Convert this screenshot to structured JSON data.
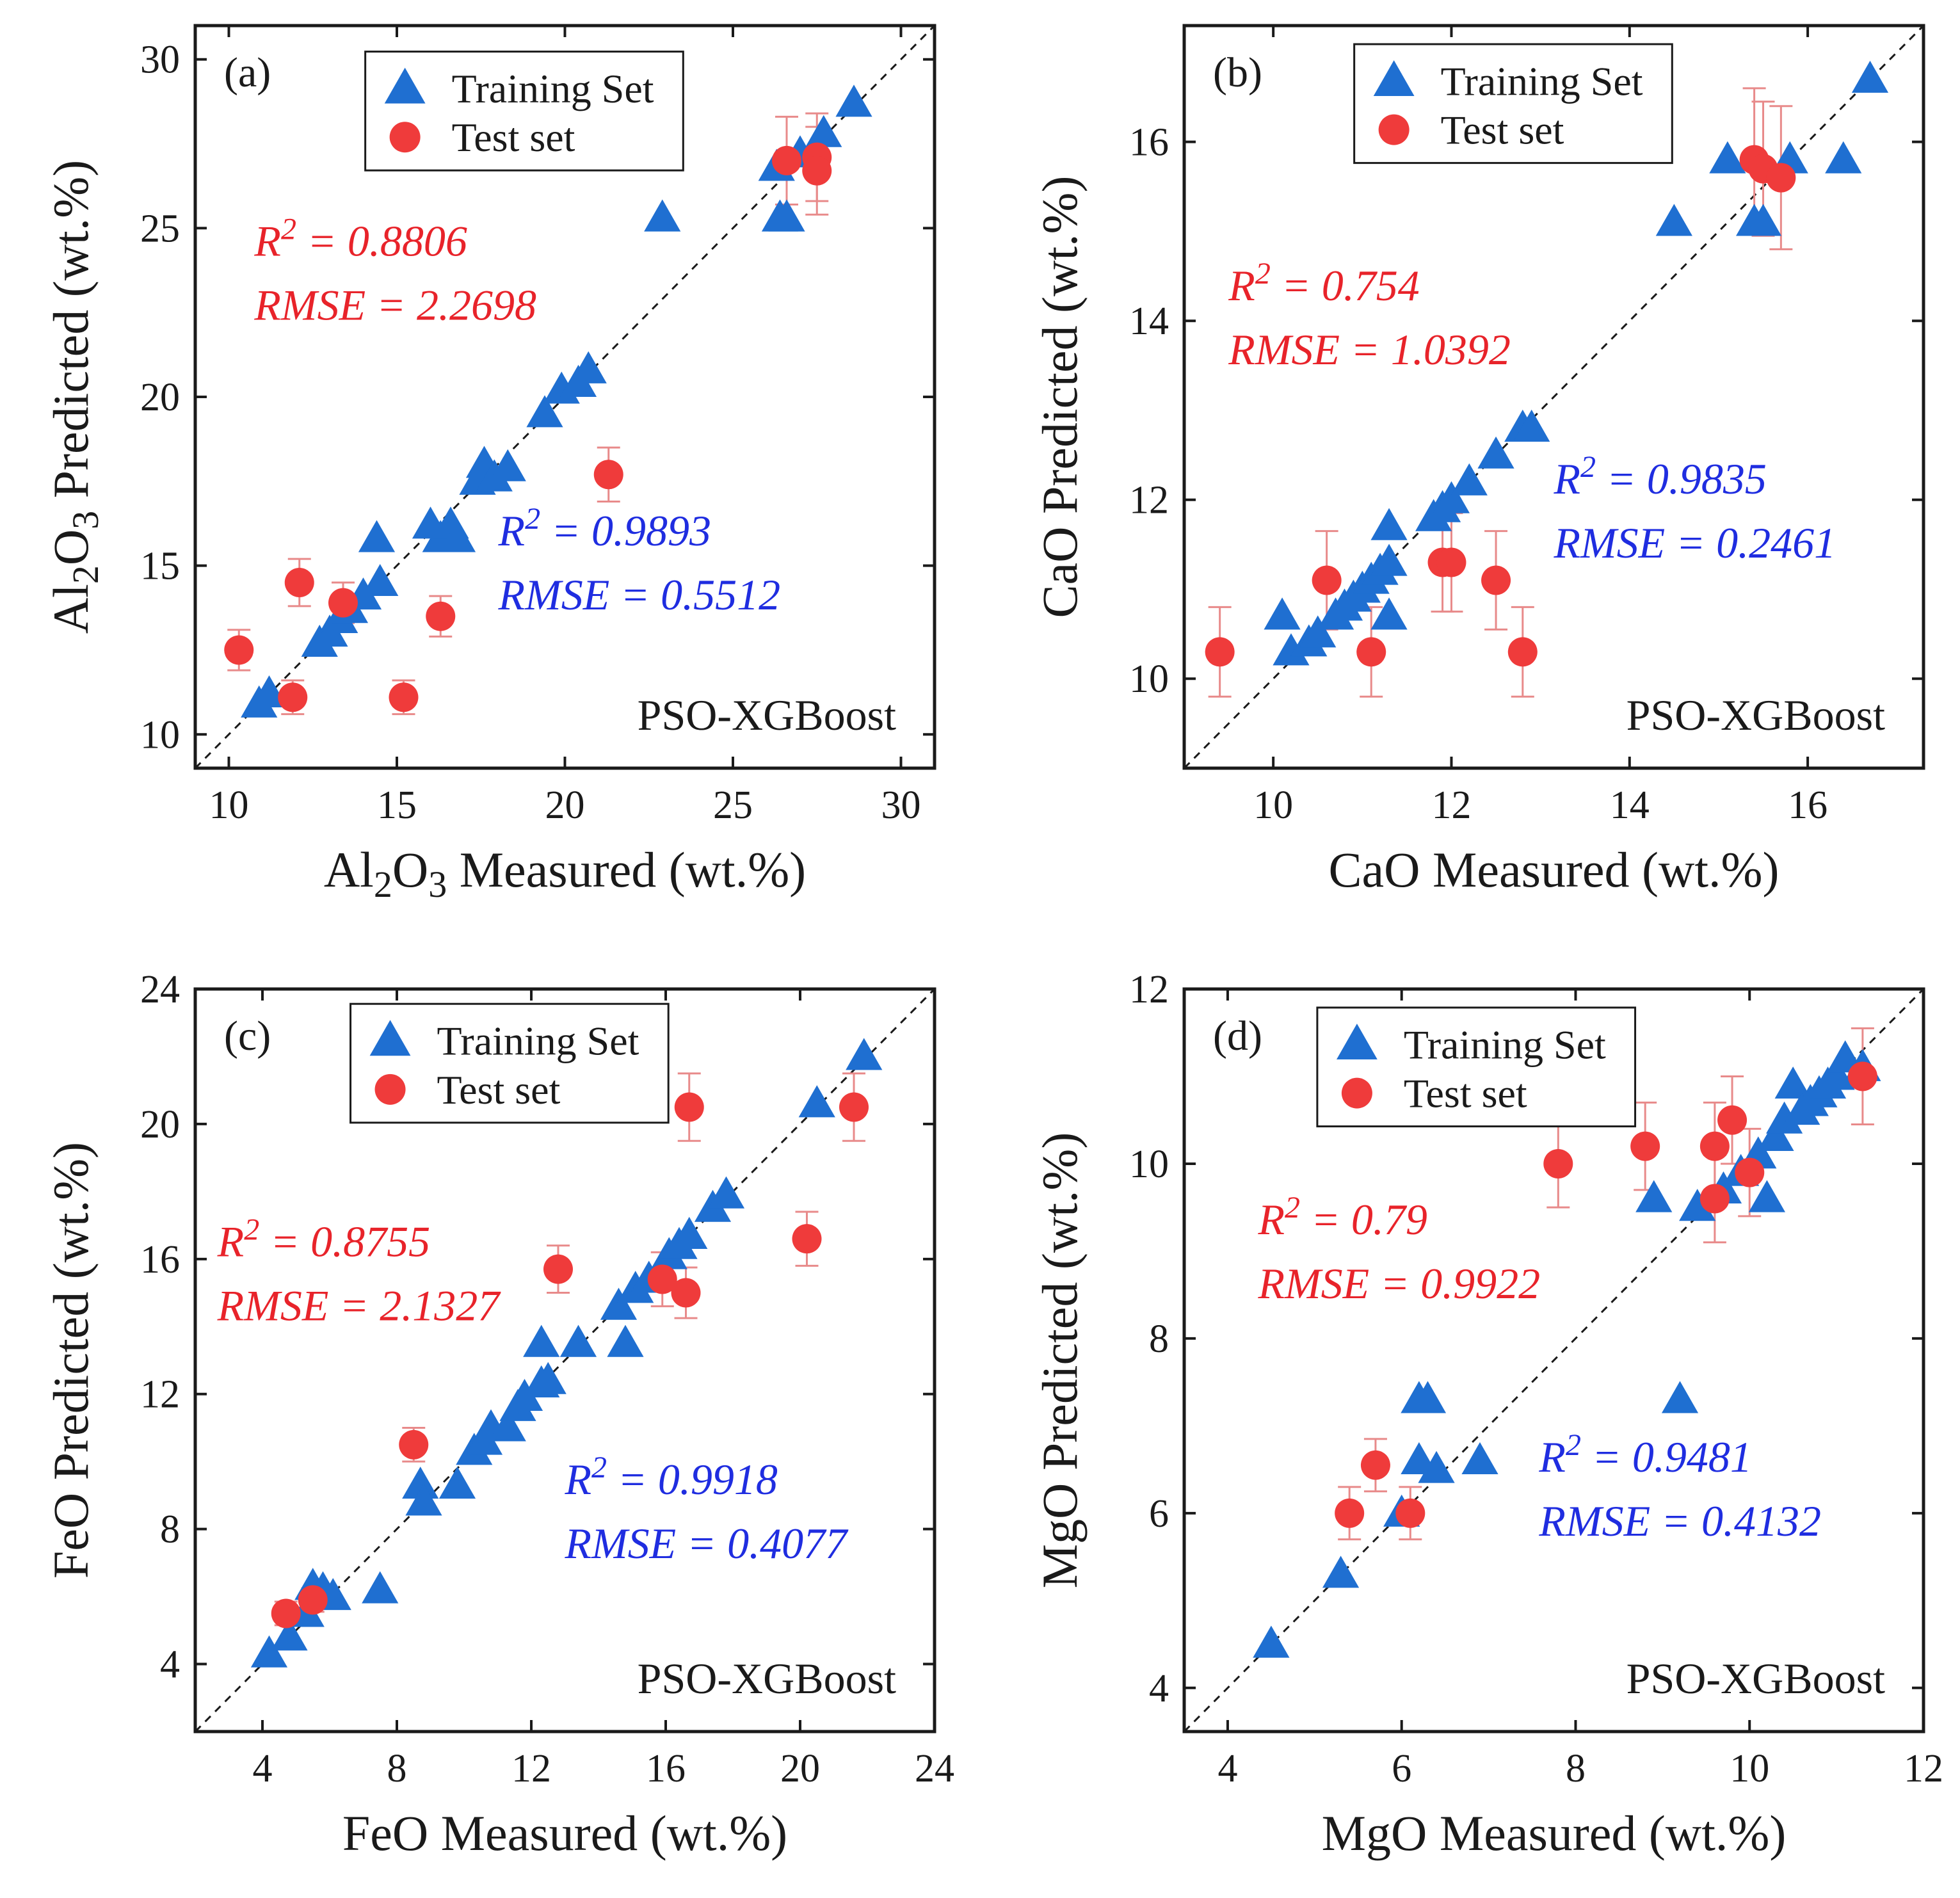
{
  "chart_data": [
    {
      "type": "scatter",
      "panel": "(a)",
      "model": "PSO-XGBoost",
      "xlabel": "Al2O3 Measured (wt.%)",
      "ylabel": "Al2O3 Predicted (wt.%)",
      "xlabel_parts": [
        {
          "t": "Al"
        },
        {
          "t": "2",
          "sub": true
        },
        {
          "t": "O"
        },
        {
          "t": "3",
          "sub": true
        },
        {
          "t": " Measured (wt.%)"
        }
      ],
      "ylabel_parts": [
        {
          "t": "Al"
        },
        {
          "t": "2",
          "sub": true
        },
        {
          "t": "O"
        },
        {
          "t": "3",
          "sub": true
        },
        {
          "t": " Predicted (wt.%)"
        }
      ],
      "xlim": [
        9,
        31
      ],
      "ylim": [
        9,
        31
      ],
      "xticks": [
        10,
        15,
        20,
        25,
        30
      ],
      "yticks": [
        10,
        15,
        20,
        25,
        30
      ],
      "legend": [
        "Training Set",
        "Test set"
      ],
      "train_stats": {
        "r2_prefix": "R",
        "r2_sup": "2",
        "r2_value": " = 0.9893",
        "rmse": "RMSE = 0.5512"
      },
      "test_stats": {
        "r2_prefix": "R",
        "r2_sup": "2",
        "r2_value": " = 0.8806",
        "rmse": "RMSE = 2.2698"
      },
      "training": [
        [
          10.9,
          10.9
        ],
        [
          11.2,
          11.2
        ],
        [
          12.7,
          12.7
        ],
        [
          13.0,
          13.0
        ],
        [
          13.3,
          13.4
        ],
        [
          13.6,
          13.7
        ],
        [
          14.0,
          14.1
        ],
        [
          14.5,
          14.5
        ],
        [
          14.4,
          15.8
        ],
        [
          16.0,
          16.2
        ],
        [
          16.3,
          15.8
        ],
        [
          16.6,
          16.2
        ],
        [
          16.8,
          15.8
        ],
        [
          17.4,
          17.5
        ],
        [
          17.6,
          18.0
        ],
        [
          17.9,
          17.6
        ],
        [
          18.3,
          17.9
        ],
        [
          19.4,
          19.5
        ],
        [
          19.9,
          20.2
        ],
        [
          20.4,
          20.4
        ],
        [
          20.7,
          20.8
        ],
        [
          22.9,
          25.3
        ],
        [
          26.3,
          26.8
        ],
        [
          26.4,
          25.3
        ],
        [
          26.6,
          25.3
        ],
        [
          27.0,
          27.2
        ],
        [
          27.7,
          27.8
        ],
        [
          28.6,
          28.7
        ]
      ],
      "test": [
        {
          "x": 10.3,
          "y": 12.5,
          "err": 0.6
        },
        {
          "x": 11.9,
          "y": 11.1,
          "err": 0.5
        },
        {
          "x": 12.1,
          "y": 14.5,
          "err": 0.7
        },
        {
          "x": 13.4,
          "y": 13.9,
          "err": 0.6
        },
        {
          "x": 15.2,
          "y": 11.1,
          "err": 0.5
        },
        {
          "x": 16.3,
          "y": 13.5,
          "err": 0.6
        },
        {
          "x": 21.3,
          "y": 17.7,
          "err": 0.8
        },
        {
          "x": 26.6,
          "y": 27.0,
          "err": 1.3
        },
        {
          "x": 27.5,
          "y": 27.1,
          "err": 1.3
        },
        {
          "x": 27.5,
          "y": 26.7,
          "err": 1.3
        }
      ]
    },
    {
      "type": "scatter",
      "panel": "(b)",
      "model": "PSO-XGBoost",
      "xlabel": "CaO Measured (wt.%)",
      "ylabel": "CaO Predicted (wt.%)",
      "xlabel_parts": [
        {
          "t": "CaO Measured (wt.%)"
        }
      ],
      "ylabel_parts": [
        {
          "t": "CaO Predicted (wt.%)"
        }
      ],
      "xlim": [
        9,
        17.3
      ],
      "ylim": [
        9,
        17.3
      ],
      "xticks": [
        10,
        12,
        14,
        16
      ],
      "yticks": [
        10,
        12,
        14,
        16
      ],
      "legend": [
        "Training Set",
        "Test set"
      ],
      "train_stats": {
        "r2_prefix": "R",
        "r2_sup": "2",
        "r2_value": " = 0.9835",
        "rmse": "RMSE = 0.2461"
      },
      "test_stats": {
        "r2_prefix": "R",
        "r2_sup": "2",
        "r2_value": " = 0.754",
        "rmse": "RMSE = 1.0392"
      },
      "training": [
        [
          10.1,
          10.7
        ],
        [
          10.2,
          10.3
        ],
        [
          10.4,
          10.4
        ],
        [
          10.5,
          10.5
        ],
        [
          10.7,
          10.7
        ],
        [
          10.8,
          10.8
        ],
        [
          10.9,
          10.9
        ],
        [
          11.0,
          11.0
        ],
        [
          11.1,
          11.1
        ],
        [
          11.2,
          11.2
        ],
        [
          11.3,
          11.3
        ],
        [
          11.3,
          11.7
        ],
        [
          11.3,
          10.7
        ],
        [
          11.8,
          11.8
        ],
        [
          11.9,
          11.9
        ],
        [
          12.0,
          12.0
        ],
        [
          12.2,
          12.2
        ],
        [
          12.5,
          12.5
        ],
        [
          12.8,
          12.8
        ],
        [
          12.9,
          12.8
        ],
        [
          14.5,
          15.1
        ],
        [
          15.1,
          15.8
        ],
        [
          15.4,
          15.1
        ],
        [
          15.5,
          15.1
        ],
        [
          15.8,
          15.8
        ],
        [
          16.4,
          15.8
        ],
        [
          16.7,
          16.7
        ]
      ],
      "test": [
        {
          "x": 9.4,
          "y": 10.3,
          "err": 0.5
        },
        {
          "x": 10.6,
          "y": 11.1,
          "err": 0.55
        },
        {
          "x": 11.1,
          "y": 10.3,
          "err": 0.5
        },
        {
          "x": 11.9,
          "y": 11.3,
          "err": 0.55
        },
        {
          "x": 12.0,
          "y": 11.3,
          "err": 0.55
        },
        {
          "x": 12.5,
          "y": 11.1,
          "err": 0.55
        },
        {
          "x": 12.8,
          "y": 10.3,
          "err": 0.5
        },
        {
          "x": 15.4,
          "y": 15.8,
          "err": 0.8
        },
        {
          "x": 15.5,
          "y": 15.7,
          "err": 0.75
        },
        {
          "x": 15.7,
          "y": 15.6,
          "err": 0.8
        }
      ]
    },
    {
      "type": "scatter",
      "panel": "(c)",
      "model": "PSO-XGBoost",
      "xlabel": "FeO Measured (wt.%)",
      "ylabel": "FeO Predicted (wt.%)",
      "xlabel_parts": [
        {
          "t": "FeO Measured (wt.%)"
        }
      ],
      "ylabel_parts": [
        {
          "t": "FeO Predicted (wt.%)"
        }
      ],
      "xlim": [
        2,
        24
      ],
      "ylim": [
        2,
        24
      ],
      "xticks": [
        4,
        8,
        12,
        16,
        20,
        24
      ],
      "yticks": [
        4,
        8,
        12,
        16,
        20,
        24
      ],
      "legend": [
        "Training Set",
        "Test set"
      ],
      "train_stats": {
        "r2_prefix": "R",
        "r2_sup": "2",
        "r2_value": " = 0.9918",
        "rmse": "RMSE = 0.4077"
      },
      "test_stats": {
        "r2_prefix": "R",
        "r2_sup": "2",
        "r2_value": " = 0.8755",
        "rmse": "RMSE = 2.1327"
      },
      "training": [
        [
          4.2,
          4.3
        ],
        [
          4.8,
          4.8
        ],
        [
          5.3,
          5.5
        ],
        [
          5.5,
          6.3
        ],
        [
          5.8,
          6.2
        ],
        [
          6.1,
          6.0
        ],
        [
          7.5,
          6.2
        ],
        [
          8.7,
          9.3
        ],
        [
          8.8,
          8.8
        ],
        [
          9.8,
          9.3
        ],
        [
          10.3,
          10.3
        ],
        [
          10.6,
          10.6
        ],
        [
          10.8,
          11.0
        ],
        [
          11.3,
          11.0
        ],
        [
          11.6,
          11.6
        ],
        [
          11.8,
          11.9
        ],
        [
          12.3,
          12.3
        ],
        [
          12.3,
          13.5
        ],
        [
          12.5,
          12.4
        ],
        [
          13.4,
          13.5
        ],
        [
          14.6,
          14.6
        ],
        [
          14.8,
          13.5
        ],
        [
          15.1,
          15.1
        ],
        [
          15.5,
          15.4
        ],
        [
          16.1,
          16.1
        ],
        [
          16.4,
          16.4
        ],
        [
          16.7,
          16.7
        ],
        [
          17.4,
          17.5
        ],
        [
          17.8,
          17.9
        ],
        [
          20.5,
          20.6
        ],
        [
          21.9,
          22.0
        ]
      ],
      "test": [
        {
          "x": 4.7,
          "y": 5.5,
          "err": 0.35
        },
        {
          "x": 5.5,
          "y": 5.9,
          "err": 0.35
        },
        {
          "x": 8.5,
          "y": 10.5,
          "err": 0.5
        },
        {
          "x": 12.8,
          "y": 15.7,
          "err": 0.7
        },
        {
          "x": 15.9,
          "y": 15.4,
          "err": 0.8
        },
        {
          "x": 16.6,
          "y": 15.0,
          "err": 0.75
        },
        {
          "x": 16.7,
          "y": 20.5,
          "err": 1.0
        },
        {
          "x": 20.2,
          "y": 16.6,
          "err": 0.8
        },
        {
          "x": 21.6,
          "y": 20.5,
          "err": 1.0
        }
      ]
    },
    {
      "type": "scatter",
      "panel": "(d)",
      "model": "PSO-XGBoost",
      "xlabel": "MgO Measured (wt.%)",
      "ylabel": "MgO Predicted (wt.%)",
      "xlabel_parts": [
        {
          "t": "MgO Measured (wt.%)"
        }
      ],
      "ylabel_parts": [
        {
          "t": "MgO Predicted (wt.%)"
        }
      ],
      "xlim": [
        3.5,
        12
      ],
      "ylim": [
        3.5,
        12
      ],
      "xticks": [
        4,
        6,
        8,
        10,
        12
      ],
      "yticks": [
        4,
        6,
        8,
        10,
        12
      ],
      "legend": [
        "Training Set",
        "Test set"
      ],
      "train_stats": {
        "r2_prefix": "R",
        "r2_sup": "2",
        "r2_value": " = 0.9481",
        "rmse": "RMSE = 0.4132"
      },
      "test_stats": {
        "r2_prefix": "R",
        "r2_sup": "2",
        "r2_value": " = 0.79",
        "rmse": "RMSE = 0.9922"
      },
      "training": [
        [
          4.5,
          4.5
        ],
        [
          5.3,
          5.3
        ],
        [
          6.0,
          6.0
        ],
        [
          6.2,
          6.6
        ],
        [
          6.2,
          7.3
        ],
        [
          6.3,
          7.3
        ],
        [
          6.4,
          6.5
        ],
        [
          6.9,
          6.6
        ],
        [
          8.9,
          9.6
        ],
        [
          9.2,
          7.3
        ],
        [
          9.4,
          9.5
        ],
        [
          9.7,
          9.7
        ],
        [
          9.9,
          9.9
        ],
        [
          10.1,
          10.1
        ],
        [
          10.2,
          9.6
        ],
        [
          10.3,
          10.3
        ],
        [
          10.4,
          10.5
        ],
        [
          10.5,
          10.9
        ],
        [
          10.6,
          10.6
        ],
        [
          10.7,
          10.7
        ],
        [
          10.8,
          10.8
        ],
        [
          10.9,
          10.9
        ],
        [
          11.0,
          11.0
        ],
        [
          11.1,
          11.2
        ],
        [
          11.3,
          11.1
        ]
      ],
      "test": [
        {
          "x": 5.4,
          "y": 6.0,
          "err": 0.3
        },
        {
          "x": 5.7,
          "y": 6.55,
          "err": 0.3
        },
        {
          "x": 6.1,
          "y": 6.0,
          "err": 0.3
        },
        {
          "x": 7.8,
          "y": 10.0,
          "err": 0.5
        },
        {
          "x": 8.8,
          "y": 10.2,
          "err": 0.5
        },
        {
          "x": 9.6,
          "y": 10.2,
          "err": 0.5
        },
        {
          "x": 9.6,
          "y": 9.6,
          "err": 0.5
        },
        {
          "x": 9.8,
          "y": 10.5,
          "err": 0.5
        },
        {
          "x": 10.0,
          "y": 9.9,
          "err": 0.5
        },
        {
          "x": 11.3,
          "y": 11.0,
          "err": 0.55
        }
      ]
    }
  ],
  "colors": {
    "training": "#1f6fd1",
    "test": "#ef3b3b",
    "test_error": "#e88a8a",
    "train_stats": "#1f2de0",
    "test_stats": "#e8232a",
    "axis": "#1a1a1a",
    "diagonal": "#1a1a1a"
  }
}
